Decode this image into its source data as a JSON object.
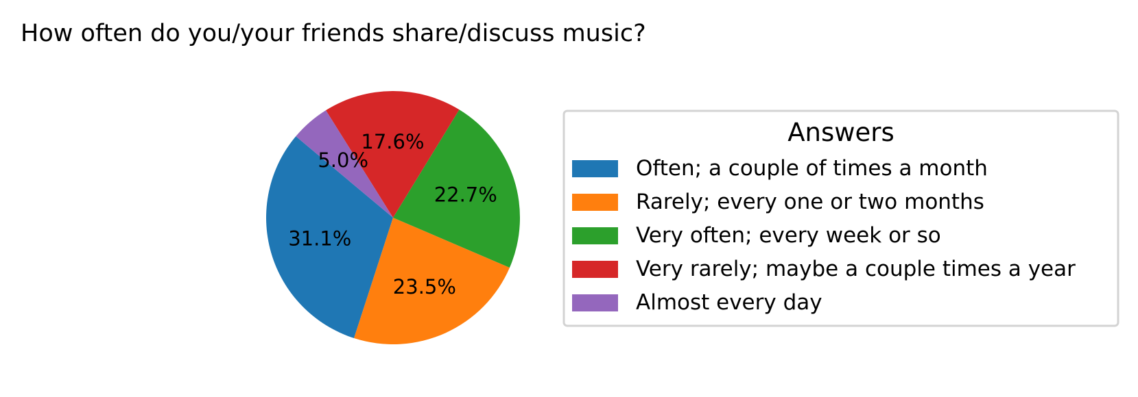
{
  "chart_data": {
    "type": "pie",
    "title": "How often do you/your friends share/discuss music?",
    "legend_title": "Answers",
    "legend_position": "right",
    "start_angle_deg": 140,
    "direction": "counterclockwise",
    "slices": [
      {
        "label": "Often; a couple of times a month",
        "value": 31.1,
        "pct_label": "31.1%",
        "color": "#1f77b4"
      },
      {
        "label": "Rarely; every one or two months",
        "value": 23.5,
        "pct_label": "23.5%",
        "color": "#ff7f0e"
      },
      {
        "label": "Very often; every week or so",
        "value": 22.7,
        "pct_label": "22.7%",
        "color": "#2ca02c"
      },
      {
        "label": "Very rarely; maybe a couple times a year",
        "value": 17.6,
        "pct_label": "17.6%",
        "color": "#d62728"
      },
      {
        "label": "Almost every day",
        "value": 5.0,
        "pct_label": "5.0%",
        "color": "#9467bd"
      }
    ]
  }
}
